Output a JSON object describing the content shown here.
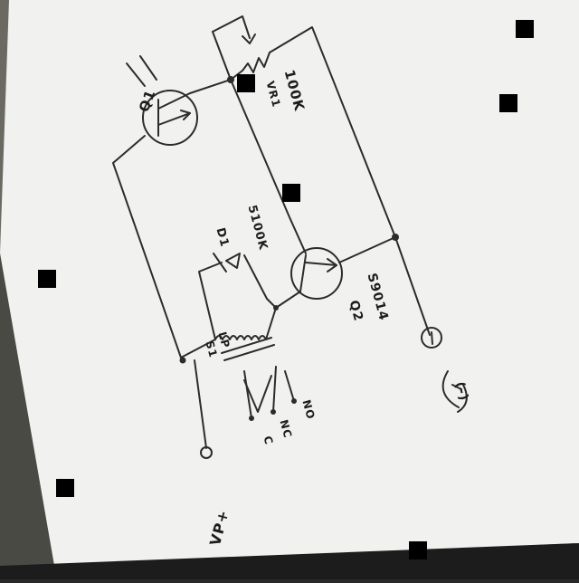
{
  "diagram": {
    "colors": {
      "paper": "#f1f1ef",
      "ink": "#2c2c2c",
      "background": "#2a2a2a",
      "wall": "#6b6a62"
    },
    "labels": {
      "transistor1": "Q1",
      "pot_value": "100K",
      "pot_sub": "VR1",
      "resistor": "5100K",
      "diode": "D1",
      "transistor2": "Q2",
      "part_number": "S9014",
      "relay_contact_a": "C",
      "relay_contact_b": "NC",
      "relay_contact_c": "NO",
      "relay_coil": "LP",
      "relay_name": "S1",
      "supply_pos": "VP+",
      "ground_sign": "(-)"
    }
  }
}
